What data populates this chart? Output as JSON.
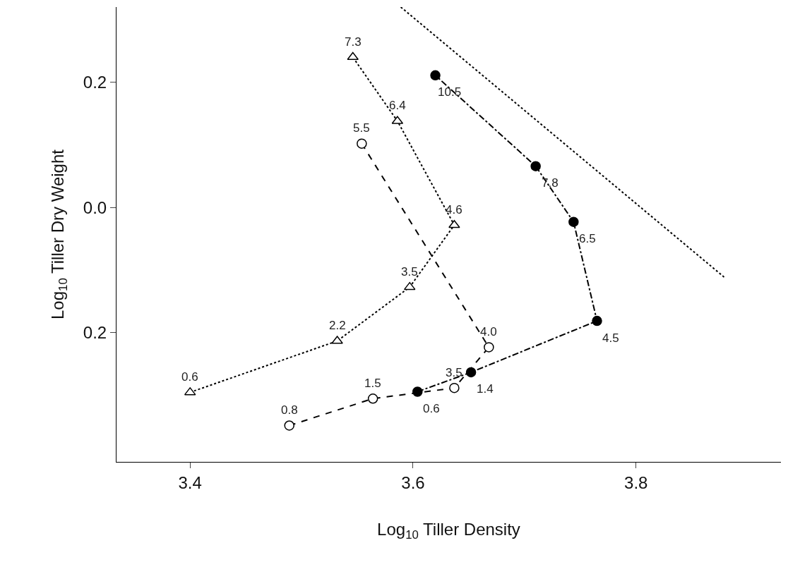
{
  "chart_data": {
    "type": "line",
    "xlabel": "Log$_{10}$ Tiller Density",
    "ylabel": "Log$_{10}$ Tiller Dry Weight",
    "xlim": [
      3.334,
      3.93
    ],
    "ylim": [
      -0.406,
      0.32
    ],
    "xticks": [
      3.4,
      3.6,
      3.8
    ],
    "yticks": [
      {
        "value": -0.2,
        "label": "0.2"
      },
      {
        "value": 0.0,
        "label": "0.0"
      },
      {
        "value": 0.2,
        "label": "0.2"
      }
    ],
    "series": [
      {
        "color": "#000000",
        "marker": "triangle-open",
        "line_style": "dotted",
        "x": [
          3.4,
          3.532,
          3.597,
          3.637,
          3.586,
          3.546
        ],
        "values": [
          -0.295,
          -0.213,
          -0.127,
          -0.028,
          0.138,
          0.24
        ]
      },
      {
        "color": "#000000",
        "marker": "circle-open",
        "line_style": "dashed",
        "x": [
          3.489,
          3.564,
          3.637,
          3.668,
          3.554
        ],
        "values": [
          -0.348,
          -0.305,
          -0.288,
          -0.223,
          0.102
        ]
      },
      {
        "color": "#000000",
        "marker": "circle",
        "line_style": "dashdot",
        "x": [
          3.604,
          3.652,
          3.765,
          3.744,
          3.71,
          3.62
        ],
        "values": [
          -0.294,
          -0.263,
          -0.181,
          -0.023,
          0.066,
          0.211
        ]
      },
      {
        "type": "line",
        "color": "#000000",
        "marker": "none",
        "line_style": "dotted",
        "x": [
          3.589,
          3.879
        ],
        "values": [
          0.32,
          -0.111
        ]
      }
    ],
    "annotations": [
      {
        "text": "0.6",
        "x": 3.4,
        "y": -0.295
      },
      {
        "text": "2.2",
        "x": 3.532,
        "y": -0.213
      },
      {
        "text": "3.5",
        "x": 3.597,
        "y": -0.127
      },
      {
        "text": "4.6",
        "x": 3.637,
        "y": -0.028
      },
      {
        "text": "6.4",
        "x": 3.586,
        "y": 0.138
      },
      {
        "text": "7.3",
        "x": 3.546,
        "y": 0.24
      },
      {
        "text": "0.8",
        "x": 3.489,
        "y": -0.348
      },
      {
        "text": "1.5",
        "x": 3.564,
        "y": -0.305
      },
      {
        "text": "3.5",
        "x": 3.637,
        "y": -0.288
      },
      {
        "text": "4.0",
        "x": 3.668,
        "y": -0.223
      },
      {
        "text": "5.5",
        "x": 3.554,
        "y": 0.102
      },
      {
        "text": "0.6",
        "x": 3.604,
        "y": -0.294
      },
      {
        "text": "1.4",
        "x": 3.652,
        "y": -0.263
      },
      {
        "text": "4.5",
        "x": 3.765,
        "y": -0.181
      },
      {
        "text": "6.5",
        "x": 3.744,
        "y": -0.023
      },
      {
        "text": "7.8",
        "x": 3.71,
        "y": 0.066
      },
      {
        "text": "10.5",
        "x": 3.62,
        "y": 0.211
      }
    ]
  }
}
